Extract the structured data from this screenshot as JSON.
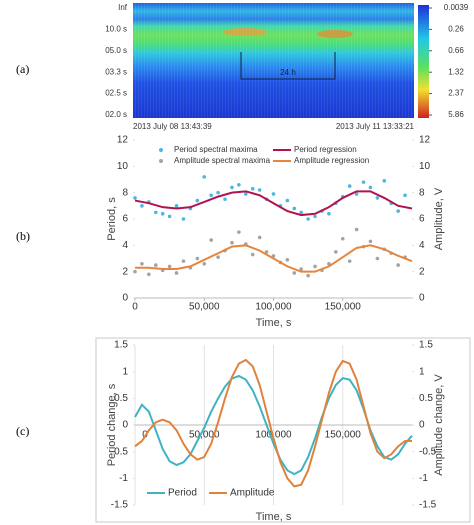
{
  "chart_data": [
    {
      "type": "heatmap",
      "label": "(a)",
      "y_labels": [
        "Inf",
        "10.0 s",
        "05.0 s",
        "03.3 s",
        "02.5 s",
        "02.0 s"
      ],
      "colorbar_ticks": [
        0.0039,
        0.26,
        0.66,
        1.32,
        2.37,
        5.86
      ],
      "x_labels": [
        "2013 July 08 13:43:39",
        "2013 July 11 13:33:21"
      ],
      "annotation": "24 h"
    },
    {
      "type": "scatter",
      "label": "(b)",
      "xlabel": "Time, s",
      "ylabel": "Period, s",
      "y2label": "Amplitude, V",
      "xlim": [
        0,
        200000
      ],
      "xticks": [
        0,
        {
          "value": 50000,
          "label": "50,000"
        },
        {
          "value": 100000,
          "label": "100,000"
        },
        {
          "value": 150000,
          "label": "150,000"
        }
      ],
      "ylim": [
        0,
        12
      ],
      "yticks": [
        0,
        2,
        4,
        6,
        8,
        10,
        12
      ],
      "y2lim": [
        0,
        12
      ],
      "y2ticks": [
        0,
        2,
        4,
        6,
        8,
        10,
        12
      ],
      "legend": "top",
      "grid": false,
      "series": [
        {
          "name": "Period spectral maxima",
          "color": "#4db6e2",
          "mark": "point",
          "x": [
            0,
            5000,
            10000,
            15000,
            20000,
            25000,
            30000,
            35000,
            40000,
            45000,
            50000,
            55000,
            60000,
            65000,
            70000,
            75000,
            80000,
            85000,
            90000,
            95000,
            100000,
            105000,
            110000,
            115000,
            120000,
            125000,
            130000,
            135000,
            140000,
            145000,
            150000,
            155000,
            160000,
            165000,
            170000,
            175000,
            180000,
            185000,
            190000,
            195000
          ],
          "values": [
            7.6,
            7.0,
            7.3,
            6.5,
            6.4,
            6.2,
            7.0,
            6.0,
            6.8,
            7.4,
            9.2,
            7.8,
            8.0,
            7.5,
            8.4,
            8.6,
            7.9,
            8.3,
            8.2,
            7.5,
            7.9,
            7.0,
            7.4,
            6.8,
            6.5,
            6.0,
            6.2,
            6.6,
            6.4,
            7.2,
            7.7,
            8.5,
            7.9,
            8.8,
            8.4,
            7.6,
            8.9,
            7.2,
            6.6,
            7.8
          ]
        },
        {
          "name": "Period regression",
          "color": "#b3124e",
          "mark": "line",
          "x": [
            0,
            10000,
            20000,
            30000,
            40000,
            50000,
            60000,
            70000,
            80000,
            90000,
            100000,
            110000,
            120000,
            130000,
            140000,
            150000,
            160000,
            170000,
            180000,
            190000,
            200000
          ],
          "values": [
            7.4,
            7.2,
            6.9,
            6.8,
            6.9,
            7.3,
            7.7,
            8.0,
            8.1,
            7.8,
            7.2,
            6.6,
            6.3,
            6.4,
            6.9,
            7.6,
            8.1,
            8.1,
            7.6,
            7.0,
            6.8
          ]
        },
        {
          "name": "Amplitude spectral maxima",
          "color": "#a3a3a3",
          "mark": "point",
          "axis": "y2",
          "x": [
            0,
            5000,
            10000,
            15000,
            20000,
            25000,
            30000,
            35000,
            40000,
            45000,
            50000,
            55000,
            60000,
            65000,
            70000,
            75000,
            80000,
            85000,
            90000,
            95000,
            100000,
            105000,
            110000,
            115000,
            120000,
            125000,
            130000,
            135000,
            140000,
            145000,
            150000,
            155000,
            160000,
            165000,
            170000,
            175000,
            180000,
            185000,
            190000,
            195000
          ],
          "values": [
            2.0,
            2.6,
            1.8,
            2.5,
            2.1,
            2.4,
            1.9,
            2.8,
            2.3,
            3.0,
            2.6,
            4.4,
            3.1,
            3.6,
            4.2,
            5.0,
            4.1,
            3.3,
            4.6,
            3.5,
            3.2,
            2.7,
            2.9,
            1.9,
            2.2,
            1.7,
            2.4,
            2.1,
            2.6,
            3.5,
            4.5,
            2.8,
            5.2,
            3.9,
            4.3,
            3.0,
            3.7,
            3.4,
            2.5,
            3.1
          ]
        },
        {
          "name": "Amplitude regression",
          "color": "#e8843c",
          "mark": "line",
          "axis": "y2",
          "x": [
            0,
            10000,
            20000,
            30000,
            40000,
            50000,
            60000,
            70000,
            80000,
            90000,
            100000,
            110000,
            120000,
            130000,
            140000,
            150000,
            160000,
            170000,
            180000,
            190000,
            200000
          ],
          "values": [
            2.3,
            2.3,
            2.2,
            2.2,
            2.4,
            2.9,
            3.4,
            3.9,
            4.0,
            3.6,
            3.0,
            2.4,
            2.0,
            2.0,
            2.4,
            3.1,
            3.8,
            4.0,
            3.7,
            3.2,
            2.8
          ]
        }
      ]
    },
    {
      "type": "line",
      "label": "(c)",
      "xlabel": "Time, s",
      "ylabel": "Period change, s",
      "y2label": "Amplitude change, V",
      "xlim": [
        0,
        200000
      ],
      "xticks": [
        0,
        {
          "value": 50000,
          "label": "50,000"
        },
        {
          "value": 100000,
          "label": "100,000"
        },
        {
          "value": 150000,
          "label": "150,000"
        }
      ],
      "ylim": [
        -1.5,
        1.5
      ],
      "yticks": [
        -1.5,
        -1,
        -0.5,
        0,
        0.5,
        1,
        1.5
      ],
      "y2lim": [
        -1.5,
        1.5
      ],
      "y2ticks": [
        -1.5,
        -1,
        -0.5,
        0,
        0.5,
        1,
        1.5
      ],
      "legend": "bottom",
      "grid": "x",
      "series": [
        {
          "name": "Period",
          "color": "#3fb3c4",
          "mark": "line",
          "x": [
            0,
            5000,
            10000,
            15000,
            20000,
            25000,
            30000,
            35000,
            40000,
            45000,
            50000,
            55000,
            60000,
            65000,
            70000,
            75000,
            80000,
            85000,
            90000,
            95000,
            100000,
            105000,
            110000,
            115000,
            120000,
            125000,
            130000,
            135000,
            140000,
            145000,
            150000,
            155000,
            160000,
            165000,
            170000,
            175000,
            180000,
            185000,
            190000,
            195000,
            200000
          ],
          "values": [
            0.15,
            0.38,
            0.25,
            -0.1,
            -0.45,
            -0.68,
            -0.75,
            -0.7,
            -0.55,
            -0.3,
            -0.05,
            0.25,
            0.5,
            0.72,
            0.87,
            0.92,
            0.85,
            0.65,
            0.35,
            0.0,
            -0.35,
            -0.65,
            -0.85,
            -0.92,
            -0.85,
            -0.6,
            -0.25,
            0.15,
            0.5,
            0.75,
            0.88,
            0.85,
            0.65,
            0.3,
            -0.1,
            -0.4,
            -0.6,
            -0.65,
            -0.55,
            -0.35,
            -0.2
          ]
        },
        {
          "name": "Amplitude",
          "color": "#e0823a",
          "mark": "line",
          "axis": "y2",
          "x": [
            0,
            5000,
            10000,
            15000,
            20000,
            25000,
            30000,
            35000,
            40000,
            45000,
            50000,
            55000,
            60000,
            65000,
            70000,
            75000,
            80000,
            85000,
            90000,
            95000,
            100000,
            105000,
            110000,
            115000,
            120000,
            125000,
            130000,
            135000,
            140000,
            145000,
            150000,
            155000,
            160000,
            165000,
            170000,
            175000,
            180000,
            185000,
            190000,
            195000,
            200000
          ],
          "values": [
            -0.4,
            -0.3,
            -0.1,
            0.05,
            0.1,
            0.05,
            -0.1,
            -0.35,
            -0.55,
            -0.65,
            -0.6,
            -0.35,
            0.05,
            0.5,
            0.9,
            1.15,
            1.22,
            1.1,
            0.75,
            0.25,
            -0.25,
            -0.7,
            -1.0,
            -1.15,
            -1.12,
            -0.85,
            -0.4,
            0.1,
            0.6,
            1.0,
            1.2,
            1.15,
            0.85,
            0.35,
            -0.15,
            -0.5,
            -0.62,
            -0.55,
            -0.4,
            -0.3,
            -0.3
          ]
        }
      ]
    }
  ]
}
